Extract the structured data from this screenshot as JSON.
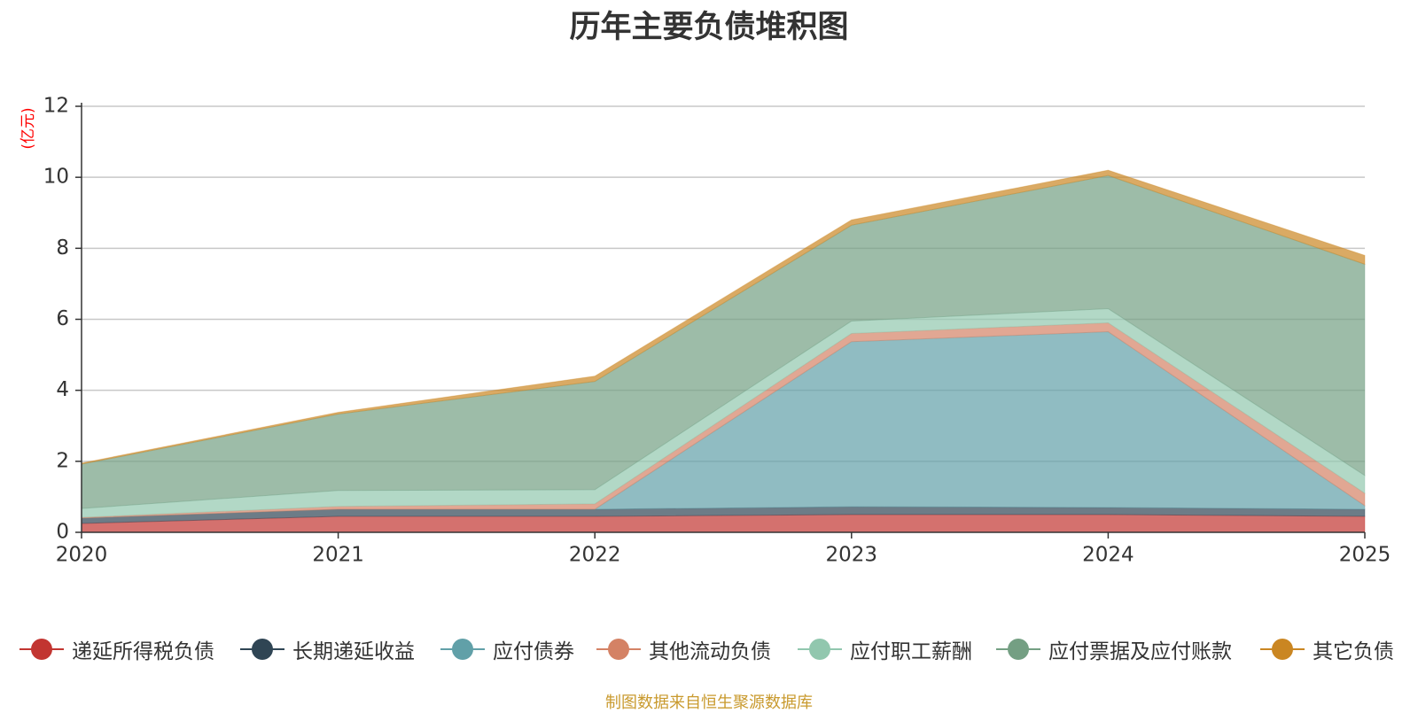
{
  "chart_data": {
    "type": "area",
    "stacked": true,
    "title": "历年主要负债堆积图",
    "ylabel": "(亿元)",
    "xlabel": "",
    "ylim": [
      0,
      12
    ],
    "yticks": [
      0,
      2,
      4,
      6,
      8,
      10,
      12
    ],
    "x": [
      "2020",
      "2021",
      "2022",
      "2023",
      "2024",
      "2025"
    ],
    "grid": true,
    "legend_position": "bottom",
    "series": [
      {
        "name": "递延所得税负债",
        "color": "#c23531",
        "values": [
          0.25,
          0.45,
          0.45,
          0.5,
          0.5,
          0.45
        ]
      },
      {
        "name": "长期递延收益",
        "color": "#2f4554",
        "values": [
          0.15,
          0.2,
          0.2,
          0.22,
          0.2,
          0.2
        ]
      },
      {
        "name": "应付债券",
        "color": "#61a0a8",
        "values": [
          0,
          0,
          0,
          4.65,
          4.95,
          0.1
        ]
      },
      {
        "name": "其他流动负债",
        "color": "#d48265",
        "values": [
          0.02,
          0.08,
          0.15,
          0.23,
          0.25,
          0.35
        ]
      },
      {
        "name": "应付职工薪酬",
        "color": "#91c7ae",
        "values": [
          0.25,
          0.45,
          0.4,
          0.35,
          0.4,
          0.5
        ]
      },
      {
        "name": "应付票据及应付账款",
        "color": "#749f83",
        "values": [
          1.25,
          2.15,
          3.05,
          2.7,
          3.75,
          5.95
        ]
      },
      {
        "name": "其它负债",
        "color": "#ca8622",
        "values": [
          0.03,
          0.05,
          0.15,
          0.15,
          0.15,
          0.25
        ]
      }
    ]
  },
  "footer": {
    "source": "制图数据来自恒生聚源数据库"
  }
}
